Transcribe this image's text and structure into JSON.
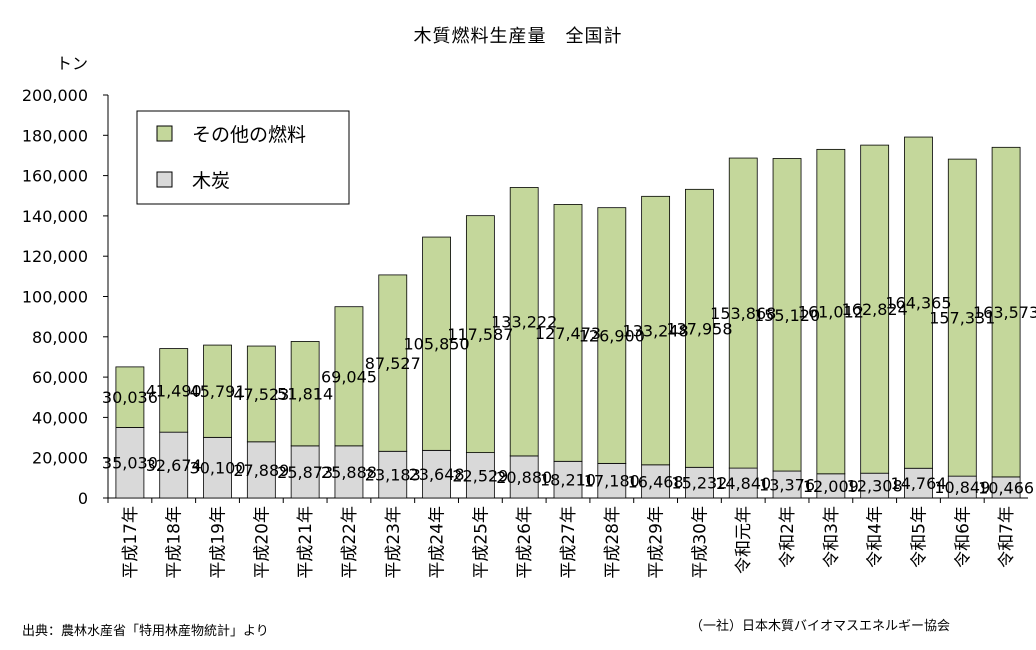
{
  "chart_data": {
    "type": "bar",
    "stacked": true,
    "title": "木質燃料生産量　全国計",
    "ylabel": "トン",
    "ylim": [
      0,
      200000
    ],
    "yticks": [
      "0",
      "20,000",
      "40,000",
      "60,000",
      "80,000",
      "100,000",
      "120,000",
      "140,000",
      "160,000",
      "180,000",
      "200,000"
    ],
    "grid": false,
    "legend_position": "top-left",
    "categories": [
      "平成17年",
      "平成18年",
      "平成19年",
      "平成20年",
      "平成21年",
      "平成22年",
      "平成23年",
      "平成24年",
      "平成25年",
      "平成26年",
      "平成27年",
      "平成28年",
      "平成29年",
      "平成30年",
      "令和元年",
      "令和2年",
      "令和3年",
      "令和4年",
      "令和5年",
      "令和6年",
      "令和7年"
    ],
    "series": [
      {
        "name": "木炭",
        "color": "#d9d9d9",
        "values": [
          35030,
          32674,
          30100,
          27889,
          25873,
          25888,
          23183,
          23648,
          22529,
          20880,
          18210,
          17180,
          16468,
          15232,
          14840,
          13376,
          12009,
          12308,
          14764,
          10849,
          10466
        ],
        "labels": [
          "35,030",
          "32,674",
          "30,100",
          "27,889",
          "25,873",
          "25,888",
          "23,183",
          "23,648",
          "22,529",
          "20,880",
          "18,210",
          "17,180",
          "16,468",
          "15,232",
          "14,840",
          "13,376",
          "12,009",
          "12,308",
          "14,764",
          "10,849",
          "10,466"
        ]
      },
      {
        "name": "その他の燃料",
        "color": "#c4d79b",
        "values": [
          30036,
          41490,
          45791,
          47523,
          51814,
          69045,
          87527,
          105850,
          117587,
          133222,
          127473,
          126900,
          133248,
          137958,
          153868,
          155120,
          161012,
          162824,
          164365,
          157331,
          163573
        ],
        "labels": [
          "30,036",
          "41,490",
          "45,791",
          "47,523",
          "51,814",
          "69,045",
          "87,527",
          "105,850",
          "117,587",
          "133,222",
          "127,473",
          "126,900",
          "133,248",
          "137,958",
          "153,868",
          "155,120",
          "161,012",
          "162,824",
          "164,365",
          "157,331",
          "163,573"
        ]
      }
    ]
  },
  "source": "出典：農林水産省「特用林産物統計」より",
  "credit": "（一社）日本木質バイオマスエネルギー協会"
}
